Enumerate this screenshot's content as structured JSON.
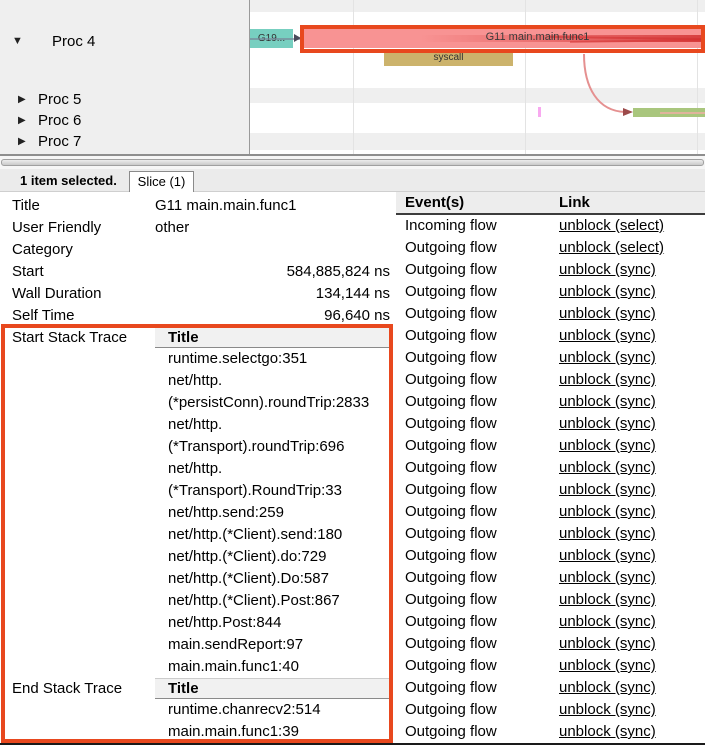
{
  "timeline": {
    "processes": [
      {
        "label": "Proc 4",
        "expanded": true
      },
      {
        "label": "Proc 5",
        "expanded": false
      },
      {
        "label": "Proc 6",
        "expanded": false
      },
      {
        "label": "Proc 7",
        "expanded": false
      }
    ],
    "slices": {
      "g19_label": "G19...",
      "selected_label": "G11 main.main.func1",
      "syscall_label": "syscall"
    }
  },
  "status_bar": {
    "selected_text": "1 item selected.",
    "tab_label": "Slice (1)"
  },
  "details": {
    "rows": [
      {
        "label": "Title",
        "value": "G11 main.main.func1"
      },
      {
        "label": "User Friendly Category",
        "value": "other"
      },
      {
        "label": "Start",
        "value": "584,885,824 ns"
      },
      {
        "label": "Wall Duration",
        "value": "134,144 ns"
      },
      {
        "label": "Self Time",
        "value": "96,640 ns"
      }
    ],
    "start_stack": {
      "label": "Start Stack Trace",
      "header": "Title",
      "frames": [
        "runtime.selectgo:351",
        "net/http.(*persistConn).roundTrip:2833",
        "net/http.(*Transport).roundTrip:696",
        "net/http.(*Transport).RoundTrip:33",
        "net/http.send:259",
        "net/http.(*Client).send:180",
        "net/http.(*Client).do:729",
        "net/http.(*Client).Do:587",
        "net/http.(*Client).Post:867",
        "net/http.Post:844",
        "main.sendReport:97",
        "main.main.func1:40"
      ]
    },
    "end_stack": {
      "label": "End Stack Trace",
      "header": "Title",
      "frames": [
        "runtime.chanrecv2:514",
        "main.main.func1:39"
      ]
    }
  },
  "events_table": {
    "headers": [
      "Event(s)",
      "Link"
    ],
    "rows": [
      {
        "event": "Incoming flow",
        "link": "unblock (select)"
      },
      {
        "event": "Outgoing flow",
        "link": "unblock (select)"
      },
      {
        "event": "Outgoing flow",
        "link": "unblock (sync)"
      },
      {
        "event": "Outgoing flow",
        "link": "unblock (sync)"
      },
      {
        "event": "Outgoing flow",
        "link": "unblock (sync)"
      },
      {
        "event": "Outgoing flow",
        "link": "unblock (sync)"
      },
      {
        "event": "Outgoing flow",
        "link": "unblock (sync)"
      },
      {
        "event": "Outgoing flow",
        "link": "unblock (sync)"
      },
      {
        "event": "Outgoing flow",
        "link": "unblock (sync)"
      },
      {
        "event": "Outgoing flow",
        "link": "unblock (sync)"
      },
      {
        "event": "Outgoing flow",
        "link": "unblock (sync)"
      },
      {
        "event": "Outgoing flow",
        "link": "unblock (sync)"
      },
      {
        "event": "Outgoing flow",
        "link": "unblock (sync)"
      },
      {
        "event": "Outgoing flow",
        "link": "unblock (sync)"
      },
      {
        "event": "Outgoing flow",
        "link": "unblock (sync)"
      },
      {
        "event": "Outgoing flow",
        "link": "unblock (sync)"
      },
      {
        "event": "Outgoing flow",
        "link": "unblock (sync)"
      },
      {
        "event": "Outgoing flow",
        "link": "unblock (sync)"
      },
      {
        "event": "Outgoing flow",
        "link": "unblock (sync)"
      },
      {
        "event": "Outgoing flow",
        "link": "unblock (sync)"
      },
      {
        "event": "Outgoing flow",
        "link": "unblock (sync)"
      },
      {
        "event": "Outgoing flow",
        "link": "unblock (sync)"
      },
      {
        "event": "Outgoing flow",
        "link": "unblock (sync)"
      },
      {
        "event": "Outgoing flow",
        "link": "unblock (sync)"
      }
    ]
  },
  "colors": {
    "annotation": "#e8481e",
    "selected_slice": "#f89393",
    "g19_slice": "#77cfc0",
    "syscall_slice": "#ccb36c",
    "green_slice": "#a9c67d",
    "panel_gray": "#efefef"
  }
}
